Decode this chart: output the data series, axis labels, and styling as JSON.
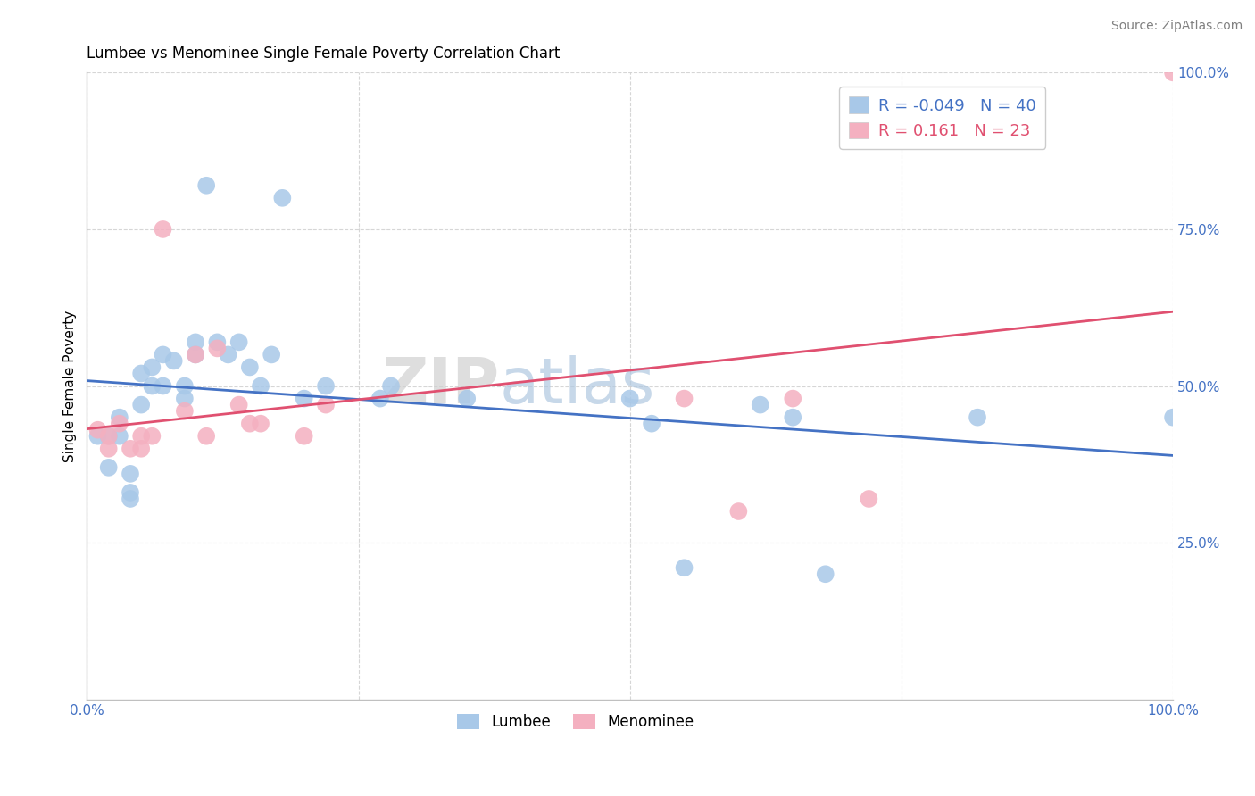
{
  "title": "Lumbee vs Menominee Single Female Poverty Correlation Chart",
  "source": "Source: ZipAtlas.com",
  "ylabel": "Single Female Poverty",
  "lumbee_R": -0.049,
  "lumbee_N": 40,
  "menominee_R": 0.161,
  "menominee_N": 23,
  "lumbee_color": "#a8c8e8",
  "menominee_color": "#f4b0c0",
  "lumbee_line_color": "#4472c4",
  "menominee_line_color": "#e05070",
  "lumbee_x": [
    0.01,
    0.02,
    0.02,
    0.03,
    0.03,
    0.04,
    0.04,
    0.04,
    0.05,
    0.05,
    0.06,
    0.06,
    0.07,
    0.07,
    0.08,
    0.09,
    0.09,
    0.1,
    0.1,
    0.11,
    0.12,
    0.13,
    0.14,
    0.15,
    0.16,
    0.17,
    0.18,
    0.2,
    0.22,
    0.27,
    0.28,
    0.35,
    0.5,
    0.52,
    0.55,
    0.62,
    0.65,
    0.68,
    0.82,
    1.0
  ],
  "lumbee_y": [
    0.42,
    0.42,
    0.37,
    0.42,
    0.45,
    0.32,
    0.33,
    0.36,
    0.52,
    0.47,
    0.5,
    0.53,
    0.5,
    0.55,
    0.54,
    0.48,
    0.5,
    0.55,
    0.57,
    0.82,
    0.57,
    0.55,
    0.57,
    0.53,
    0.5,
    0.55,
    0.8,
    0.48,
    0.5,
    0.48,
    0.5,
    0.48,
    0.48,
    0.44,
    0.21,
    0.47,
    0.45,
    0.2,
    0.45,
    0.45
  ],
  "menominee_x": [
    0.01,
    0.02,
    0.02,
    0.03,
    0.04,
    0.05,
    0.05,
    0.06,
    0.07,
    0.09,
    0.1,
    0.11,
    0.12,
    0.14,
    0.15,
    0.16,
    0.2,
    0.22,
    0.55,
    0.6,
    0.65,
    0.72,
    1.0
  ],
  "menominee_y": [
    0.43,
    0.4,
    0.42,
    0.44,
    0.4,
    0.4,
    0.42,
    0.42,
    0.75,
    0.46,
    0.55,
    0.42,
    0.56,
    0.47,
    0.44,
    0.44,
    0.42,
    0.47,
    0.48,
    0.3,
    0.48,
    0.32,
    1.0
  ],
  "xlim": [
    0.0,
    1.0
  ],
  "ylim": [
    0.0,
    1.0
  ],
  "xticks": [
    0.0,
    0.25,
    0.5,
    0.75,
    1.0
  ],
  "xticklabels": [
    "0.0%",
    "",
    "",
    "",
    "100.0%"
  ],
  "yticks": [
    0.25,
    0.5,
    0.75,
    1.0
  ],
  "yticklabels": [
    "25.0%",
    "50.0%",
    "75.0%",
    "100.0%"
  ],
  "background_color": "#ffffff",
  "grid_color": "#cccccc",
  "tick_color": "#4472c4",
  "title_fontsize": 12,
  "source_fontsize": 10
}
